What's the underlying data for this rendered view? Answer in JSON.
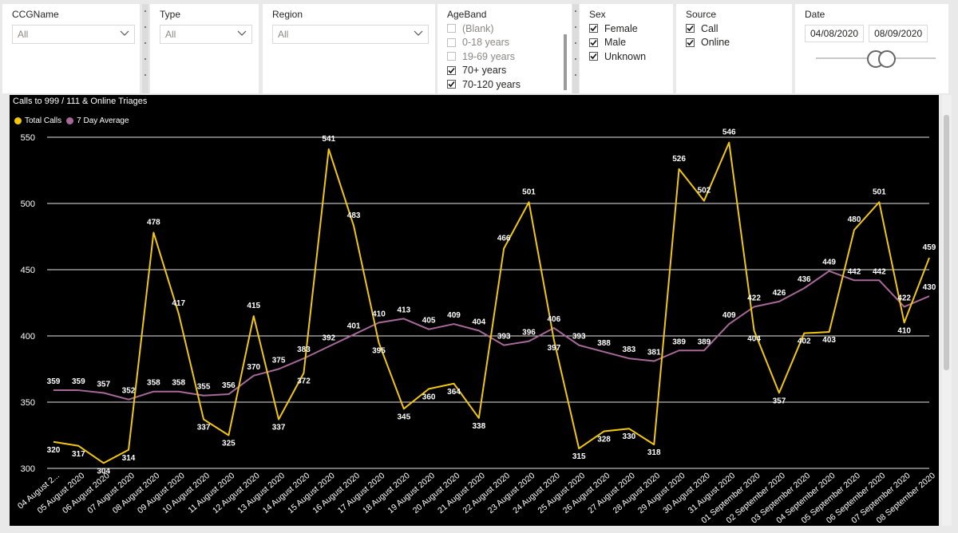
{
  "slicers": {
    "ccg": {
      "title": "CCGName",
      "value": "All"
    },
    "type": {
      "title": "Type",
      "value": "All"
    },
    "region": {
      "title": "Region",
      "value": "All"
    },
    "ageband": {
      "title": "AgeBand",
      "items": [
        {
          "label": "(Blank)",
          "checked": false
        },
        {
          "label": "0-18 years",
          "checked": false
        },
        {
          "label": "19-69 years",
          "checked": false
        },
        {
          "label": "70+ years",
          "checked": true
        },
        {
          "label": "70-120 years",
          "checked": true
        }
      ]
    },
    "sex": {
      "title": "Sex",
      "items": [
        {
          "label": "Female",
          "checked": true
        },
        {
          "label": "Male",
          "checked": true
        },
        {
          "label": "Unknown",
          "checked": true
        }
      ]
    },
    "source": {
      "title": "Source",
      "items": [
        {
          "label": "Call",
          "checked": true
        },
        {
          "label": "Online",
          "checked": true
        }
      ]
    },
    "date": {
      "title": "Date",
      "start": "04/08/2020",
      "end": "08/09/2020"
    }
  },
  "chart": {
    "title": "Calls to 999 / 111 & Online Triages",
    "legend": [
      {
        "name": "Total Calls",
        "color": "#f2c80f"
      },
      {
        "name": "7 Day Average",
        "color": "#a66999"
      }
    ]
  },
  "chart_data": {
    "type": "line",
    "title": "Calls to 999 / 111 & Online Triages",
    "ylim": [
      300,
      550
    ],
    "yticks": [
      300,
      350,
      400,
      450,
      500,
      550
    ],
    "grid": true,
    "legend_position": "top-left",
    "categories": [
      "04 August 2...",
      "05 August 2020",
      "06 August 2020",
      "07 August 2020",
      "08 August 2020",
      "09 August 2020",
      "10 August 2020",
      "11 August 2020",
      "12 August 2020",
      "13 August 2020",
      "14 August 2020",
      "15 August 2020",
      "16 August 2020",
      "17 August 2020",
      "18 August 2020",
      "19 August 2020",
      "20 August 2020",
      "21 August 2020",
      "22 August 2020",
      "23 August 2020",
      "24 August 2020",
      "25 August 2020",
      "26 August 2020",
      "27 August 2020",
      "28 August 2020",
      "29 August 2020",
      "30 August 2020",
      "31 August 2020",
      "01 September 2020",
      "02 September 2020",
      "03 September 2020",
      "04 September 2020",
      "05 September 2020",
      "06 September 2020",
      "07 September 2020",
      "08 September 2020"
    ],
    "series": [
      {
        "name": "Total Calls",
        "color": "#f2c80f",
        "values": [
          320,
          317,
          304,
          314,
          478,
          417,
          337,
          325,
          415,
          337,
          372,
          541,
          483,
          395,
          345,
          360,
          364,
          338,
          466,
          501,
          397,
          315,
          328,
          330,
          318,
          526,
          502,
          546,
          404,
          357,
          402,
          403,
          480,
          501,
          410,
          459
        ]
      },
      {
        "name": "7 Day Average",
        "color": "#a66999",
        "values": [
          359,
          359,
          357,
          352,
          358,
          358,
          355,
          356,
          370,
          375,
          383,
          392,
          401,
          410,
          413,
          405,
          409,
          404,
          393,
          396,
          406,
          393,
          388,
          383,
          381,
          389,
          389,
          409,
          422,
          426,
          436,
          449,
          442,
          442,
          422,
          430
        ]
      }
    ]
  }
}
